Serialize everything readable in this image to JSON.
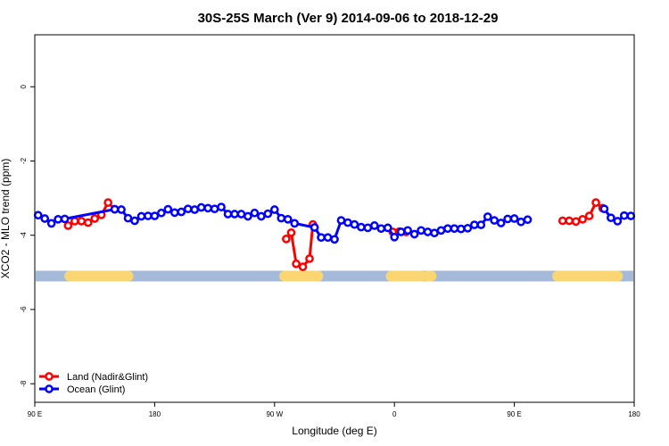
{
  "chart_data": {
    "type": "line",
    "title": "30S-25S March (Ver 9)   2014-09-06 to 2018-12-29",
    "xlabel": "Longitude (deg E)",
    "ylabel": "XCO2 - MLO trend (ppm)",
    "xlim": [
      90,
      450
    ],
    "ylim": [
      -8.5,
      1.4
    ],
    "x_ticks": [
      {
        "value": 90,
        "label": "90 E"
      },
      {
        "value": 162,
        "label": "180"
      },
      {
        "value": 234,
        "label": "90 W"
      },
      {
        "value": 306,
        "label": "0"
      },
      {
        "value": 378,
        "label": "90 E"
      },
      {
        "value": 450,
        "label": "180"
      }
    ],
    "y_ticks": [
      {
        "value": 0,
        "label": "0"
      },
      {
        "value": -2,
        "label": "-2"
      },
      {
        "value": -4,
        "label": "-4"
      },
      {
        "value": -6,
        "label": "-6"
      },
      {
        "value": -8,
        "label": "-8"
      }
    ],
    "land_mask": {
      "y": -5.1,
      "ocean_color": "#a5b9d9",
      "land_color": "#fad673",
      "land_segments": [
        [
          111,
          146
        ],
        [
          240,
          260
        ],
        [
          304,
          322
        ],
        [
          326,
          328
        ],
        [
          404,
          440
        ]
      ]
    },
    "series": [
      {
        "name": "Land (Nadir&Glint)",
        "color": "#ff0000",
        "points": [
          [
            110,
            -3.74
          ],
          [
            114,
            -3.62
          ],
          [
            118,
            -3.62
          ],
          [
            122,
            -3.66
          ],
          [
            126,
            -3.55
          ],
          [
            130,
            -3.45
          ],
          [
            134,
            -3.12
          ],
          [
            138,
            -3.3
          ],
          [
            241,
            -4.1
          ],
          [
            244,
            -3.93
          ],
          [
            247,
            -4.77
          ],
          [
            251,
            -4.85
          ],
          [
            255,
            -4.63
          ],
          [
            257,
            -3.71
          ],
          [
            305,
            -3.91
          ],
          [
            309,
            -3.9
          ],
          [
            313,
            -3.91
          ],
          [
            407,
            -3.61
          ],
          [
            411,
            -3.61
          ],
          [
            415,
            -3.63
          ],
          [
            419,
            -3.57
          ],
          [
            423,
            -3.48
          ],
          [
            427,
            -3.12
          ],
          [
            431,
            -3.27
          ]
        ]
      },
      {
        "name": "Ocean (Glint)",
        "color": "#0000ff",
        "points": [
          [
            92,
            -3.46
          ],
          [
            96,
            -3.55
          ],
          [
            100,
            -3.68
          ],
          [
            104,
            -3.57
          ],
          [
            108,
            -3.56
          ],
          [
            138,
            -3.3
          ],
          [
            142,
            -3.31
          ],
          [
            146,
            -3.54
          ],
          [
            150,
            -3.61
          ],
          [
            154,
            -3.49
          ],
          [
            158,
            -3.48
          ],
          [
            162,
            -3.48
          ],
          [
            166,
            -3.4
          ],
          [
            170,
            -3.3
          ],
          [
            174,
            -3.39
          ],
          [
            178,
            -3.37
          ],
          [
            182,
            -3.29
          ],
          [
            186,
            -3.31
          ],
          [
            190,
            -3.25
          ],
          [
            194,
            -3.27
          ],
          [
            198,
            -3.29
          ],
          [
            202,
            -3.24
          ],
          [
            206,
            -3.43
          ],
          [
            210,
            -3.43
          ],
          [
            214,
            -3.43
          ],
          [
            218,
            -3.49
          ],
          [
            222,
            -3.4
          ],
          [
            226,
            -3.49
          ],
          [
            230,
            -3.42
          ],
          [
            234,
            -3.31
          ],
          [
            238,
            -3.54
          ],
          [
            242,
            -3.57
          ],
          [
            246,
            -3.68
          ],
          [
            258,
            -3.79
          ],
          [
            262,
            -4.06
          ],
          [
            266,
            -4.06
          ],
          [
            270,
            -4.11
          ],
          [
            274,
            -3.6
          ],
          [
            278,
            -3.66
          ],
          [
            282,
            -3.71
          ],
          [
            286,
            -3.78
          ],
          [
            290,
            -3.8
          ],
          [
            294,
            -3.74
          ],
          [
            298,
            -3.82
          ],
          [
            302,
            -3.8
          ],
          [
            306,
            -4.05
          ],
          [
            310,
            -3.91
          ],
          [
            314,
            -3.87
          ],
          [
            318,
            -3.97
          ],
          [
            322,
            -3.87
          ],
          [
            326,
            -3.91
          ],
          [
            330,
            -3.94
          ],
          [
            334,
            -3.87
          ],
          [
            338,
            -3.82
          ],
          [
            342,
            -3.82
          ],
          [
            346,
            -3.83
          ],
          [
            350,
            -3.81
          ],
          [
            354,
            -3.72
          ],
          [
            358,
            -3.72
          ],
          [
            362,
            -3.5
          ],
          [
            366,
            -3.6
          ],
          [
            370,
            -3.67
          ],
          [
            374,
            -3.56
          ],
          [
            378,
            -3.55
          ],
          [
            382,
            -3.64
          ],
          [
            386,
            -3.58
          ],
          [
            432,
            -3.29
          ],
          [
            436,
            -3.53
          ],
          [
            440,
            -3.62
          ],
          [
            444,
            -3.47
          ],
          [
            448,
            -3.48
          ]
        ]
      }
    ],
    "legend_position": "bottom-left"
  }
}
